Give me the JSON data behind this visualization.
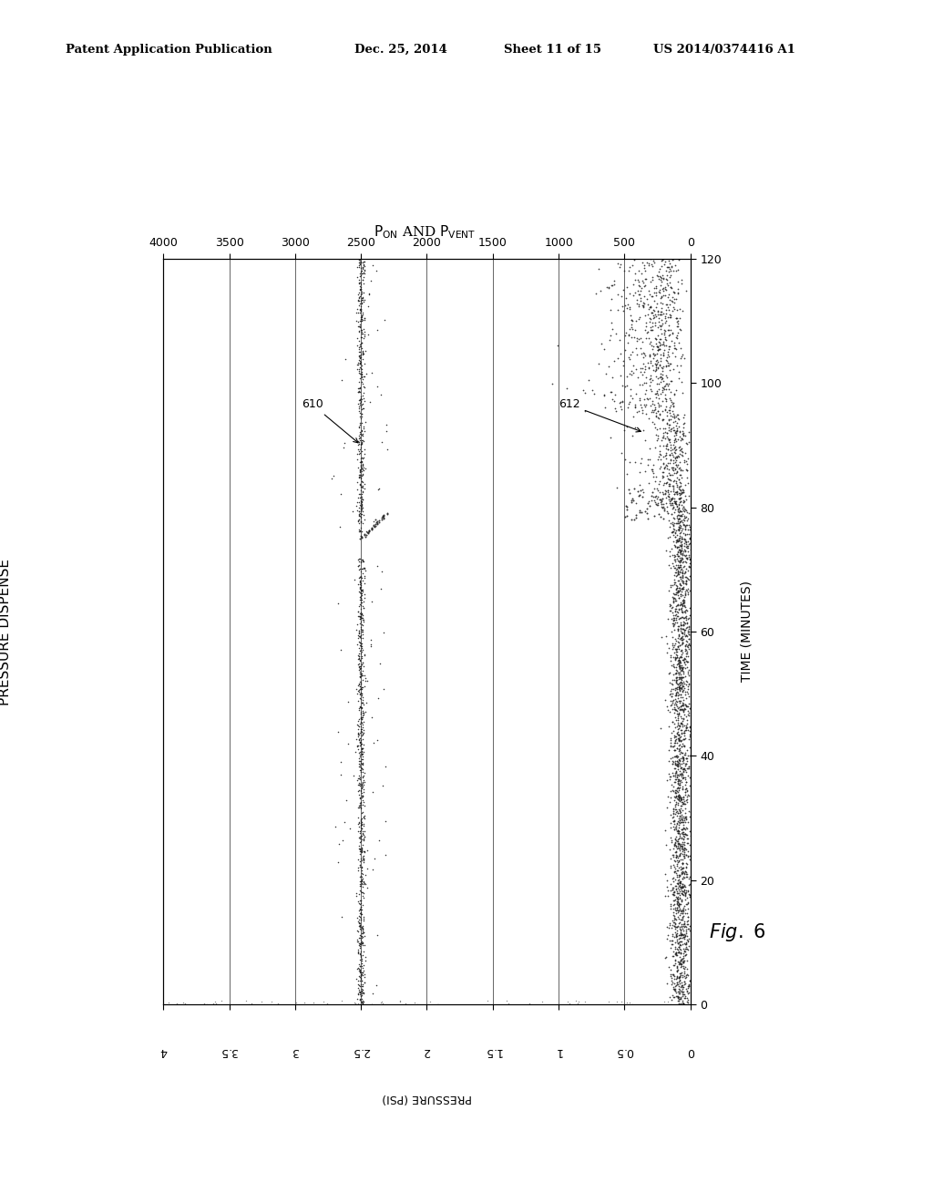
{
  "patent_line1": "Patent Application Publication",
  "patent_line2": "Dec. 25, 2014",
  "patent_line3": "Sheet 11 of 15",
  "patent_line4": "US 2014/0374416 A1",
  "fig_label": "Fig. 6",
  "y_label_left": "PRESSURE DISPENSE",
  "x_label_bottom": "PRESSURE (PSI)",
  "time_label": "TIME (MINUTES)",
  "top_title": "P_ON AND P_VENT",
  "top_axis_ticks": [
    0,
    500,
    1000,
    1500,
    2000,
    2500,
    3000,
    3500,
    4000
  ],
  "bottom_axis_ticks": [
    0,
    0.5,
    1.0,
    1.5,
    2.0,
    2.5,
    3.0,
    3.5,
    4.0
  ],
  "time_axis_ticks": [
    0,
    20,
    40,
    60,
    80,
    100,
    120
  ],
  "time_min": 0,
  "time_max": 120,
  "psi_min": 0,
  "psi_max": 4,
  "background_color": "#ffffff",
  "data_color": "#222222",
  "annotation_610_label": "610",
  "annotation_612_label": "612",
  "series_610_psi": 2.5,
  "series_612_psi": 0.08
}
